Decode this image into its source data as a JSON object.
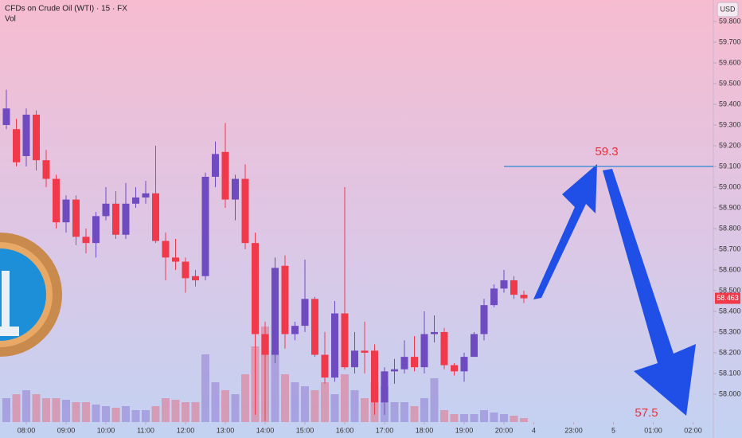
{
  "chart_data": {
    "type": "candlestick",
    "title": "CFDs on Crude Oil (WTI) · 15 · FX",
    "volume_label": "Vol",
    "currency": "USD",
    "up_color": "#6f4bc0",
    "down_color": "#f03a4b",
    "open": [
      59.3,
      59.28,
      59.15,
      59.35,
      59.13,
      59.04,
      58.83,
      58.94,
      58.76,
      58.73,
      58.86,
      58.92,
      58.77,
      58.92,
      58.95,
      58.97,
      58.74,
      58.66,
      58.64,
      58.57,
      58.57,
      59.05,
      59.17,
      58.94,
      59.04,
      58.73,
      58.29,
      58.19,
      58.62,
      58.29,
      58.33,
      58.46,
      58.19,
      58.08,
      58.39,
      58.13,
      58.21,
      58.21,
      57.96,
      58.11,
      58.12,
      58.18,
      58.13,
      58.29,
      58.3,
      58.14,
      58.11,
      58.18,
      58.29,
      58.43,
      58.51,
      58.55,
      58.48
    ],
    "high": [
      59.47,
      59.33,
      59.38,
      59.37,
      59.18,
      59.06,
      58.96,
      58.96,
      58.8,
      58.88,
      59.0,
      58.98,
      59.02,
      59.0,
      59.03,
      59.2,
      58.78,
      58.75,
      58.66,
      58.6,
      59.07,
      59.22,
      59.31,
      59.06,
      59.11,
      58.78,
      58.35,
      58.66,
      58.67,
      58.35,
      58.65,
      58.47,
      58.3,
      58.45,
      59.0,
      58.3,
      58.35,
      58.24,
      58.13,
      58.17,
      58.26,
      58.28,
      58.4,
      58.38,
      58.32,
      58.15,
      58.2,
      58.3,
      58.46,
      58.53,
      58.6,
      58.57,
      58.5
    ],
    "low": [
      59.28,
      59.1,
      59.1,
      59.08,
      59.0,
      58.8,
      58.78,
      58.72,
      58.68,
      58.66,
      58.84,
      58.75,
      58.75,
      58.9,
      58.92,
      58.73,
      58.55,
      58.6,
      58.49,
      58.52,
      58.55,
      59.0,
      58.9,
      58.84,
      58.7,
      57.9,
      57.87,
      58.15,
      58.22,
      58.26,
      58.3,
      58.18,
      58.05,
      58.06,
      58.12,
      58.1,
      58.1,
      57.9,
      57.9,
      58.05,
      58.1,
      58.11,
      58.1,
      58.25,
      58.12,
      58.09,
      58.06,
      58.18,
      58.26,
      58.42,
      58.49,
      58.46,
      58.44
    ],
    "close": [
      59.38,
      59.12,
      59.35,
      59.13,
      59.04,
      58.83,
      58.94,
      58.76,
      58.73,
      58.86,
      58.92,
      58.77,
      58.92,
      58.95,
      58.97,
      58.74,
      58.66,
      58.64,
      58.56,
      58.55,
      59.05,
      59.16,
      58.94,
      59.04,
      58.73,
      58.29,
      58.19,
      58.61,
      58.29,
      58.33,
      58.46,
      58.19,
      58.08,
      58.39,
      58.13,
      58.21,
      58.2,
      57.96,
      58.11,
      58.12,
      58.18,
      58.13,
      58.29,
      58.3,
      58.14,
      58.11,
      58.18,
      58.29,
      58.43,
      58.51,
      58.55,
      58.48,
      58.463
    ],
    "volume": [
      30,
      35,
      40,
      35,
      30,
      30,
      28,
      25,
      25,
      22,
      20,
      18,
      20,
      15,
      15,
      20,
      30,
      28,
      25,
      25,
      85,
      50,
      40,
      35,
      60,
      95,
      120,
      90,
      60,
      50,
      45,
      40,
      50,
      35,
      60,
      40,
      30,
      50,
      45,
      25,
      25,
      20,
      30,
      55,
      15,
      10,
      10,
      10,
      15,
      12,
      10,
      8,
      5
    ],
    "volume_ylim": [
      0,
      530
    ],
    "xlim": [
      -0.64,
      71.04
    ],
    "xticks": [
      {
        "value": 2,
        "label": "08:00"
      },
      {
        "value": 6,
        "label": "09:00"
      },
      {
        "value": 10,
        "label": "10:00"
      },
      {
        "value": 14,
        "label": "11:00"
      },
      {
        "value": 18,
        "label": "12:00"
      },
      {
        "value": 22,
        "label": "13:00"
      },
      {
        "value": 26,
        "label": "14:00"
      },
      {
        "value": 30,
        "label": "15:00"
      },
      {
        "value": 34,
        "label": "16:00"
      },
      {
        "value": 38,
        "label": "17:00"
      },
      {
        "value": 42,
        "label": "18:00"
      },
      {
        "value": 46,
        "label": "19:00"
      },
      {
        "value": 50,
        "label": "20:00"
      },
      {
        "value": 53,
        "label": "4"
      },
      {
        "value": 57,
        "label": "23:00"
      },
      {
        "value": 61,
        "label": "5"
      },
      {
        "value": 65,
        "label": "01:00"
      },
      {
        "value": 69,
        "label": "02:00"
      }
    ],
    "ylim": [
      57.865,
      59.904
    ],
    "yticks": [
      {
        "value": 58.0,
        "label": "58.000"
      },
      {
        "value": 58.1,
        "label": "58.100"
      },
      {
        "value": 58.2,
        "label": "58.200"
      },
      {
        "value": 58.3,
        "label": "58.300"
      },
      {
        "value": 58.4,
        "label": "58.400"
      },
      {
        "value": 58.5,
        "label": "58.500"
      },
      {
        "value": 58.6,
        "label": "58.600"
      },
      {
        "value": 58.7,
        "label": "58.700"
      },
      {
        "value": 58.8,
        "label": "58.800"
      },
      {
        "value": 58.9,
        "label": "58.900"
      },
      {
        "value": 59.0,
        "label": "59.000"
      },
      {
        "value": 59.1,
        "label": "59.100"
      },
      {
        "value": 59.2,
        "label": "59.200"
      },
      {
        "value": 59.3,
        "label": "59.300"
      },
      {
        "value": 59.4,
        "label": "59.400"
      },
      {
        "value": 59.5,
        "label": "59.500"
      },
      {
        "value": 59.6,
        "label": "59.600"
      },
      {
        "value": 59.7,
        "label": "59.700"
      },
      {
        "value": 59.8,
        "label": "59.800"
      }
    ],
    "target_line": 59.1,
    "annotations": [
      "59.3",
      "57.5"
    ]
  }
}
